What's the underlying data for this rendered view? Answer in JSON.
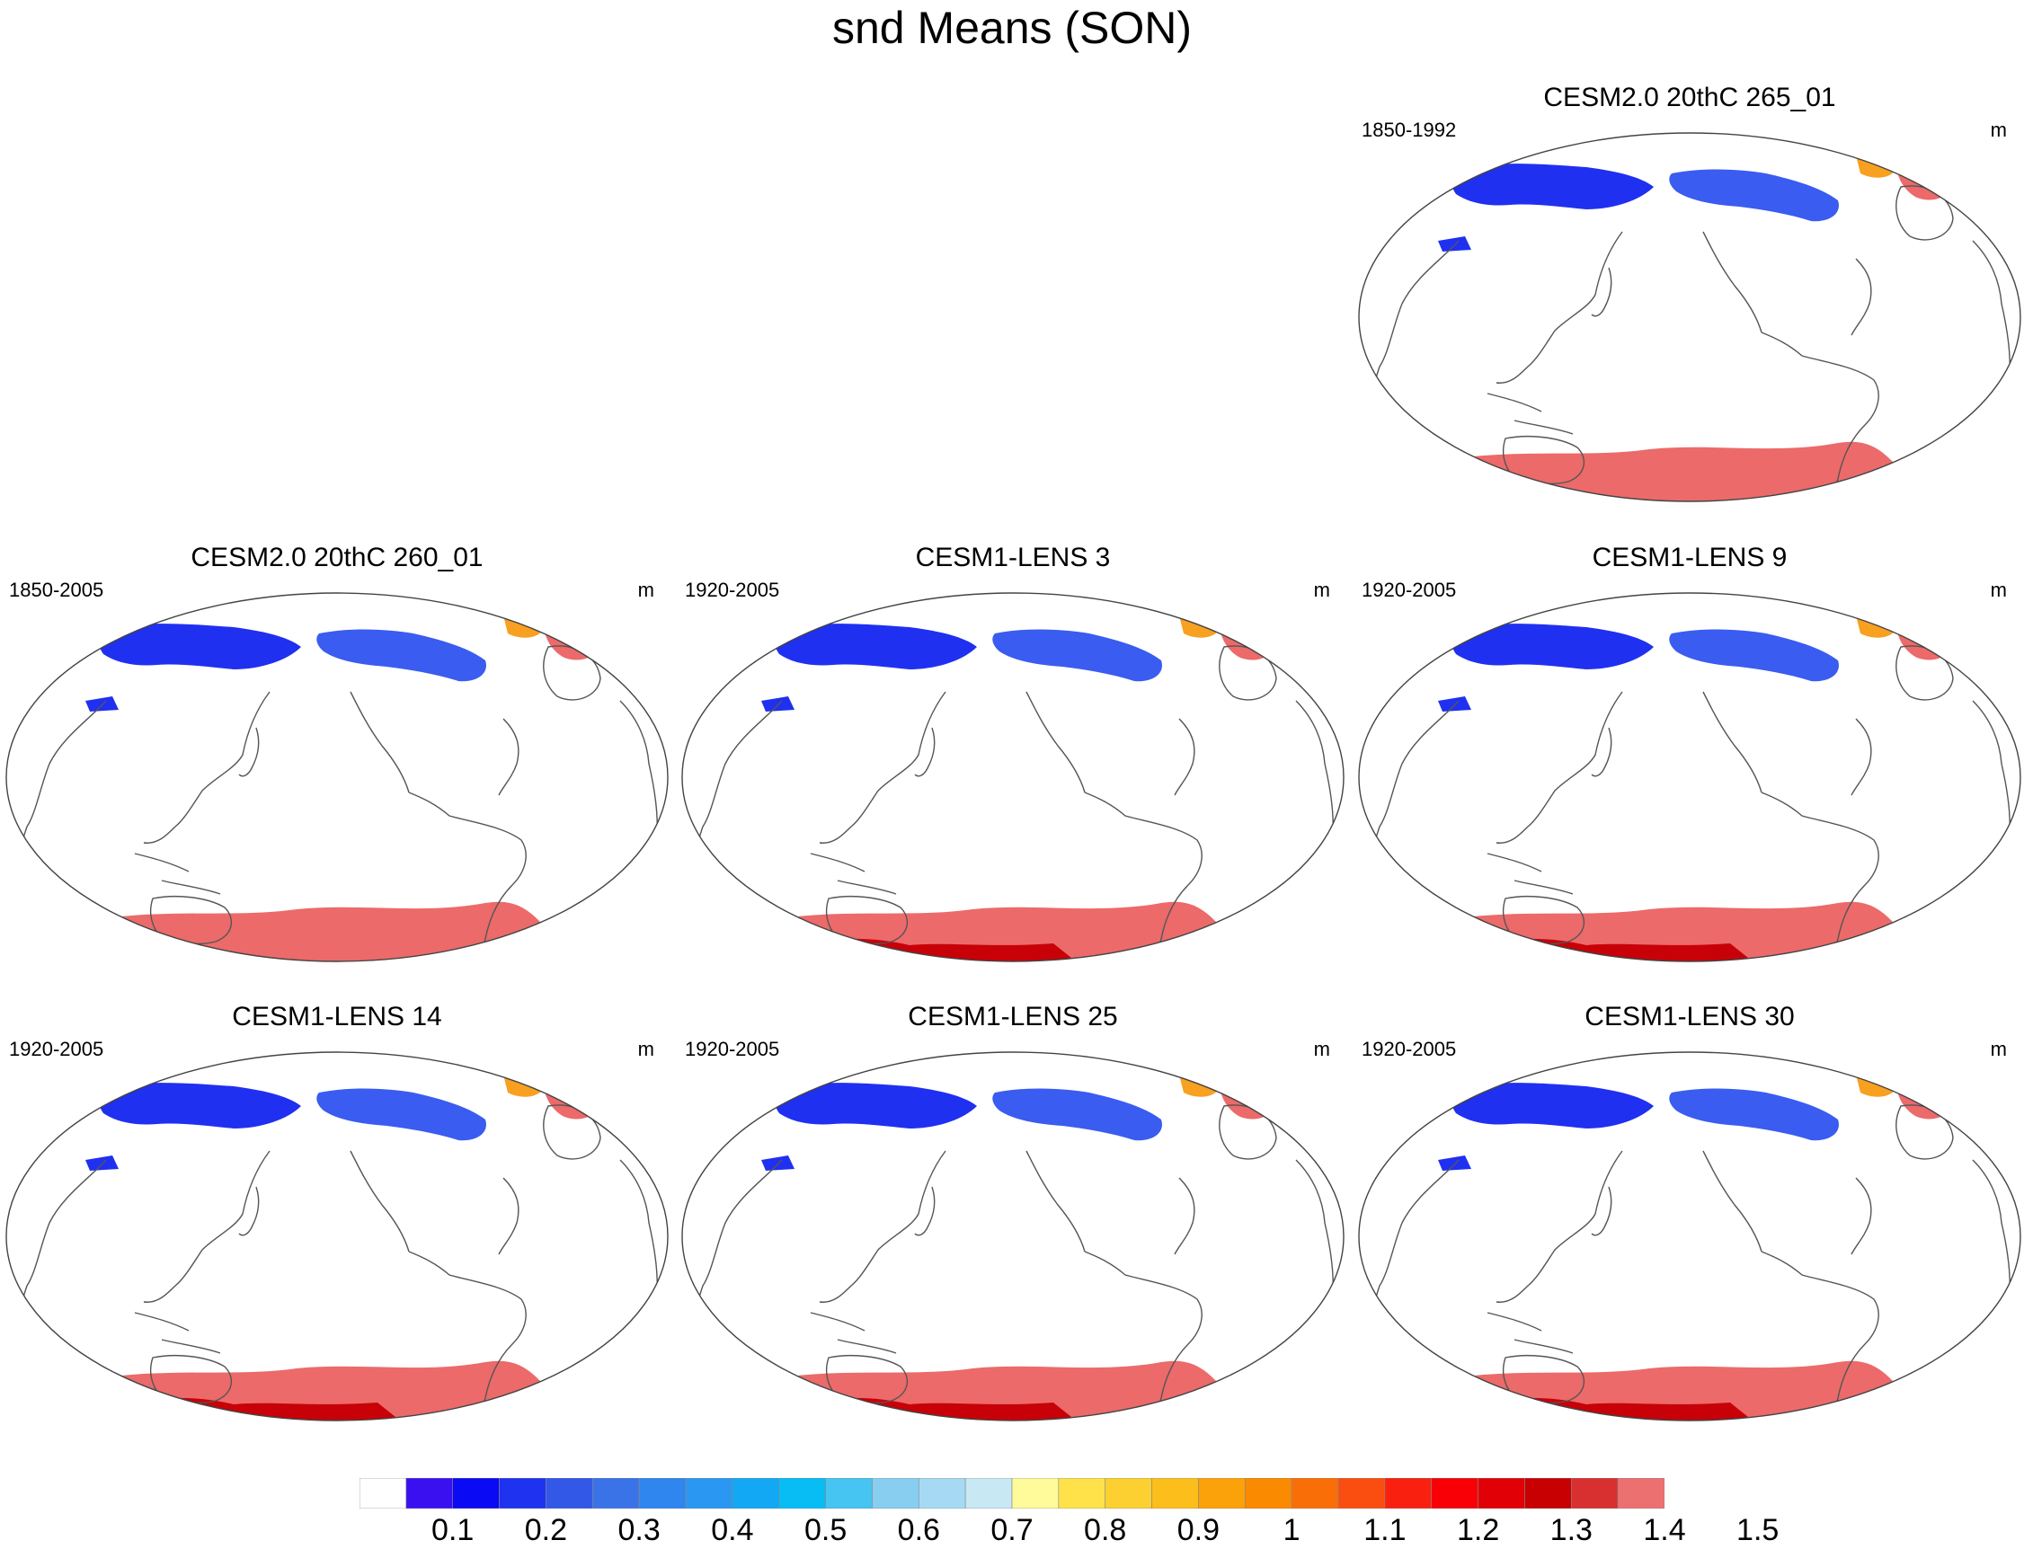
{
  "figure": {
    "title": "snd Means (SON)"
  },
  "panels": [
    {
      "id": "p265",
      "title": "CESM2.0 20thC 265_01",
      "period": "1850-1992",
      "units": "m",
      "antarctic_core": false
    },
    {
      "id": "p260",
      "title": "CESM2.0 20thC 260_01",
      "period": "1850-2005",
      "units": "m",
      "antarctic_core": false
    },
    {
      "id": "lens3",
      "title": "CESM1-LENS 3",
      "period": "1920-2005",
      "units": "m",
      "antarctic_core": true
    },
    {
      "id": "lens9",
      "title": "CESM1-LENS 9",
      "period": "1920-2005",
      "units": "m",
      "antarctic_core": true
    },
    {
      "id": "lens14",
      "title": "CESM1-LENS 14",
      "period": "1920-2005",
      "units": "m",
      "antarctic_core": true
    },
    {
      "id": "lens25",
      "title": "CESM1-LENS 25",
      "period": "1920-2005",
      "units": "m",
      "antarctic_core": true
    },
    {
      "id": "lens30",
      "title": "CESM1-LENS 30",
      "period": "1920-2005",
      "units": "m",
      "antarctic_core": true
    }
  ],
  "colorbar": {
    "labels": [
      "0.1",
      "0.2",
      "0.3",
      "0.4",
      "0.5",
      "0.6",
      "0.7",
      "0.8",
      "0.9",
      "1",
      "1.1",
      "1.2",
      "1.3",
      "1.4",
      "1.5"
    ],
    "colors": [
      "#ffffff",
      "#3a10f0",
      "#0a0af5",
      "#1e32f0",
      "#3258e8",
      "#3a72e8",
      "#2e86ee",
      "#2a98f2",
      "#12a8f4",
      "#08bcf4",
      "#46c4f2",
      "#88cef0",
      "#a6daf4",
      "#c8e8f4",
      "#fffa9a",
      "#ffe24a",
      "#fcd030",
      "#fcbe1a",
      "#fba20a",
      "#fa8a00",
      "#fa6e08",
      "#fa4e10",
      "#fa2010",
      "#f80006",
      "#e00006",
      "#c80002",
      "#d83030",
      "#ec7070"
    ]
  },
  "colors": {
    "low_snow": "#2030f0",
    "mid_snow": "#3a5cf0",
    "high_snow": "#ec6a6a",
    "core_snow": "#c80008",
    "orange_snow": "#f8a020"
  }
}
